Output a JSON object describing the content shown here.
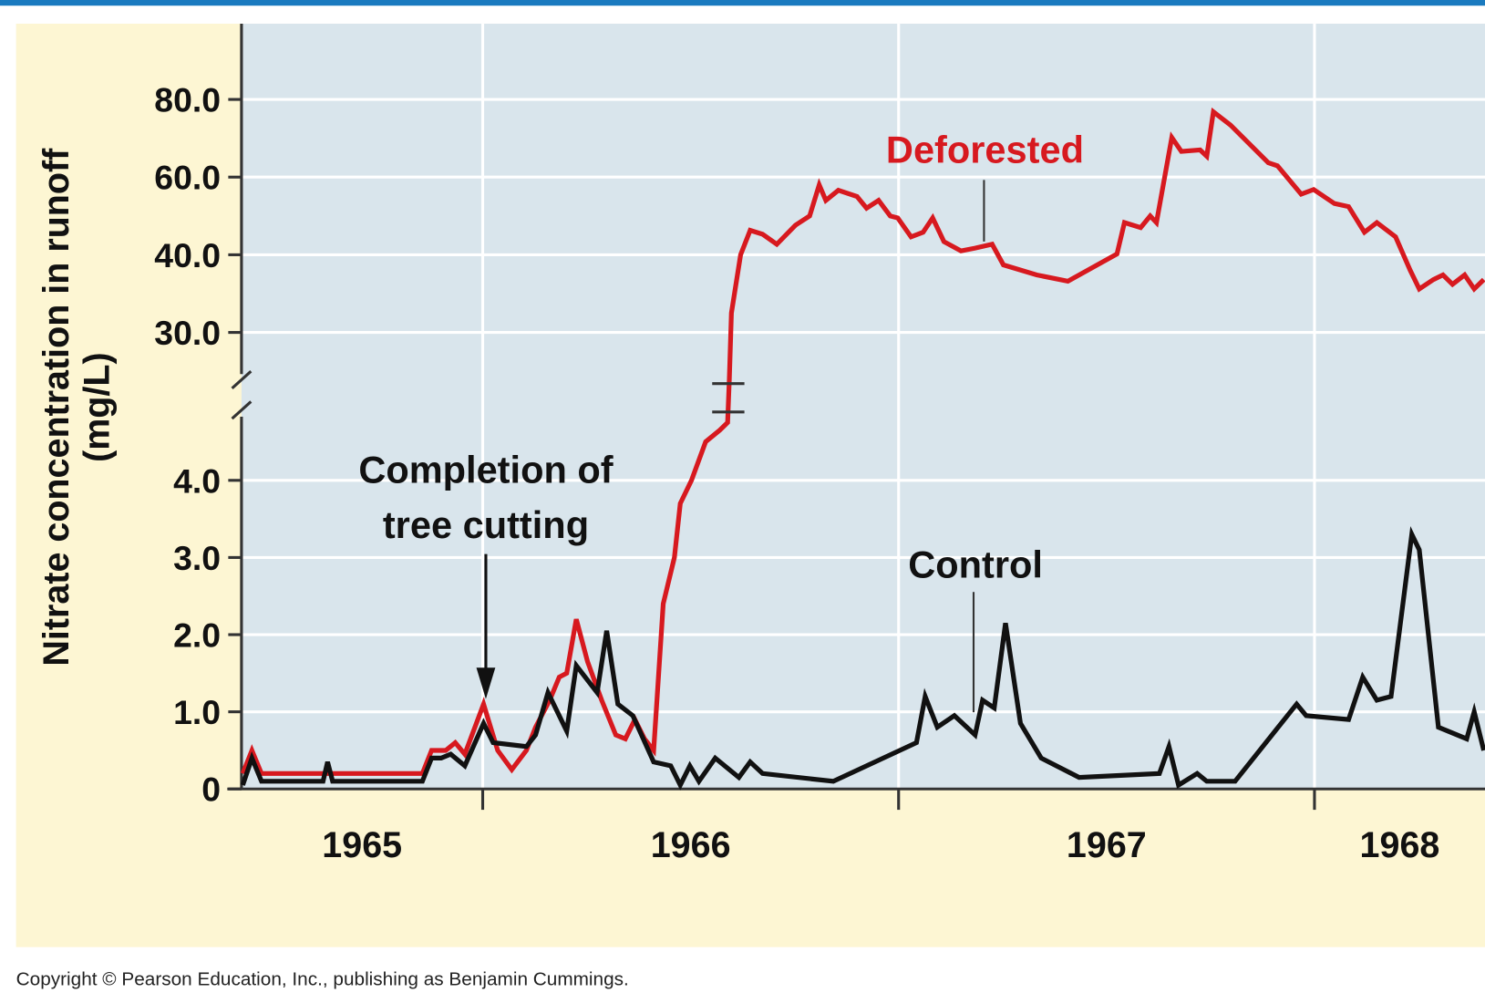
{
  "chart_data": {
    "type": "line",
    "y_label": [
      "Nitrate concentration in runoff",
      "(mg/L)"
    ],
    "categories": [
      "1965",
      "1966",
      "1967",
      "1968"
    ],
    "xlim": [
      1965.42,
      1968.41
    ],
    "xticks": [
      1966,
      1967,
      1968
    ],
    "ylim": [
      0,
      100
    ],
    "ybreak": [
      4.8,
      24
    ],
    "yticks": [
      0,
      {
        "value": 1,
        "label": "1.0"
      },
      {
        "value": 2,
        "label": "2.0"
      },
      {
        "value": 3,
        "label": "3.0"
      },
      {
        "value": 4,
        "label": "4.0"
      },
      {
        "value": 30,
        "label": "30.0"
      },
      {
        "value": 40,
        "label": "40.0"
      },
      {
        "value": 60,
        "label": "60.0"
      },
      {
        "value": 80,
        "label": "80.0"
      }
    ],
    "grid": true,
    "series": [
      {
        "name": "Deforested",
        "color": "#d7191f",
        "x": [
          1965.423,
          1965.445,
          1965.468,
          1965.855,
          1965.877,
          1965.911,
          1965.934,
          1965.957,
          1966.002,
          1966.036,
          1966.07,
          1966.105,
          1966.127,
          1966.161,
          1966.184,
          1966.202,
          1966.225,
          1966.252,
          1966.286,
          1966.32,
          1966.343,
          1966.366,
          1966.389,
          1966.411,
          1966.434,
          1966.461,
          1966.475,
          1966.502,
          1966.536,
          1966.57,
          1966.589,
          1966.593,
          1966.598,
          1966.62,
          1966.643,
          1966.673,
          1966.707,
          1966.752,
          1966.786,
          1966.809,
          1966.825,
          1966.855,
          1966.9,
          1966.923,
          1966.952,
          1966.98,
          1966.998,
          1967.03,
          1967.059,
          1967.082,
          1967.109,
          1967.15,
          1967.184,
          1967.225,
          1967.252,
          1967.332,
          1967.407,
          1967.525,
          1967.543,
          1967.582,
          1967.605,
          1967.62,
          1967.657,
          1967.68,
          1967.725,
          1967.741,
          1967.757,
          1967.798,
          1967.889,
          1967.911,
          1967.968,
          1967.998,
          1968.048,
          1968.082,
          1968.12,
          1968.15,
          1968.195,
          1968.23,
          1968.252,
          1968.286,
          1968.309,
          1968.332,
          1968.361,
          1968.384,
          1968.407
        ],
        "values": [
          0.2,
          0.5,
          0.2,
          0.2,
          0.5,
          0.5,
          0.6,
          0.45,
          1.1,
          0.5,
          0.25,
          0.5,
          0.8,
          1.15,
          1.45,
          1.5,
          2.2,
          1.65,
          1.15,
          0.7,
          0.65,
          0.9,
          0.65,
          0.5,
          2.4,
          3.0,
          3.7,
          4.0,
          4.5,
          4.65,
          4.75,
          24,
          32.5,
          40,
          46.3,
          45.3,
          42.7,
          47.6,
          50,
          58,
          54,
          56.6,
          55,
          52,
          54,
          50,
          49.5,
          44.6,
          45.8,
          49.5,
          43.4,
          41,
          41.7,
          42.7,
          38.7,
          37.4,
          36.6,
          40.2,
          48.3,
          47,
          50,
          48.3,
          70.2,
          66.6,
          67,
          65.4,
          76.8,
          73.4,
          63.7,
          62.9,
          55.6,
          56.8,
          53.2,
          52.4,
          45.8,
          48.3,
          44.6,
          38,
          35.6,
          36.8,
          37.4,
          36.2,
          37.4,
          35.6,
          36.8
        ]
      },
      {
        "name": "Control",
        "color": "#111111",
        "x": [
          1965.423,
          1965.445,
          1965.468,
          1965.616,
          1965.627,
          1965.639,
          1965.855,
          1965.877,
          1965.9,
          1965.923,
          1965.957,
          1966.002,
          1966.025,
          1966.105,
          1966.127,
          1966.157,
          1966.202,
          1966.225,
          1966.275,
          1966.298,
          1966.325,
          1966.361,
          1966.411,
          1966.452,
          1966.475,
          1966.498,
          1966.52,
          1966.559,
          1966.616,
          1966.643,
          1966.673,
          1966.843,
          1967.043,
          1967.064,
          1967.093,
          1967.134,
          1967.184,
          1967.202,
          1967.23,
          1967.257,
          1967.293,
          1967.343,
          1967.434,
          1967.627,
          1967.65,
          1967.673,
          1967.718,
          1967.741,
          1967.809,
          1967.957,
          1967.98,
          1968.082,
          1968.116,
          1968.15,
          1968.184,
          1968.234,
          1968.252,
          1968.298,
          1968.366,
          1968.384,
          1968.407
        ],
        "values": [
          0.05,
          0.4,
          0.1,
          0.1,
          0.35,
          0.1,
          0.1,
          0.4,
          0.4,
          0.45,
          0.3,
          0.85,
          0.6,
          0.55,
          0.7,
          1.25,
          0.75,
          1.6,
          1.25,
          2.05,
          1.1,
          0.95,
          0.35,
          0.3,
          0.05,
          0.3,
          0.1,
          0.4,
          0.15,
          0.35,
          0.2,
          0.1,
          0.6,
          1.2,
          0.8,
          0.95,
          0.7,
          1.15,
          1.05,
          2.15,
          0.85,
          0.4,
          0.15,
          0.2,
          0.55,
          0.05,
          0.2,
          0.1,
          0.1,
          1.1,
          0.95,
          0.9,
          1.45,
          1.15,
          1.2,
          3.3,
          3.1,
          0.8,
          0.65,
          1.0,
          0.5
        ]
      }
    ],
    "annotations": [
      "Completion of",
      "tree cutting"
    ],
    "copyright": "Copyright © Pearson Education, Inc., publishing as Benjamin Cummings."
  }
}
